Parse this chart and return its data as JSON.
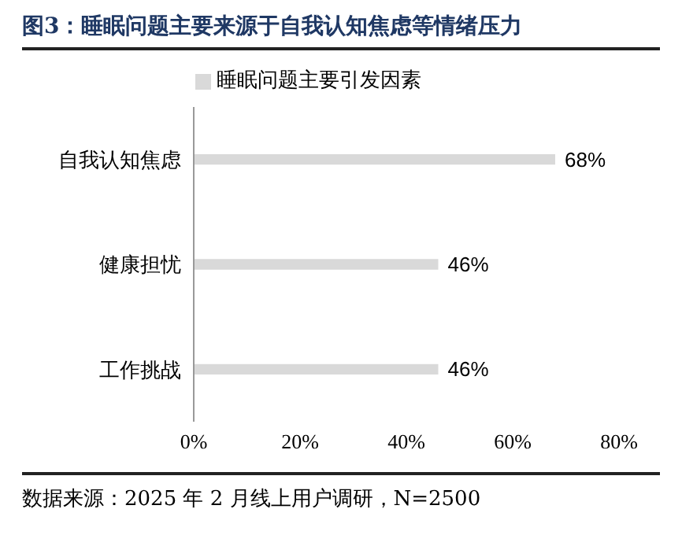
{
  "chart_data": {
    "type": "bar",
    "orientation": "horizontal",
    "title": "图3：睡眠问题主要来源于自我认知焦虑等情绪压力",
    "categories": [
      "自我认知焦虑",
      "健康担忧",
      "工作挑战"
    ],
    "series": [
      {
        "name": "睡眠问题主要引发因素",
        "color": "#d9d9d9",
        "values": [
          68,
          46,
          46
        ],
        "value_labels": [
          "68%",
          "46%",
          "46%"
        ]
      }
    ],
    "xlim": [
      0,
      80
    ],
    "xticks": [
      {
        "value": 0,
        "label": "0%"
      },
      {
        "value": 20,
        "label": "20%"
      },
      {
        "value": 40,
        "label": "40%"
      },
      {
        "value": 60,
        "label": "60%"
      },
      {
        "value": 80,
        "label": "80%"
      }
    ],
    "grid": false,
    "legend": "top",
    "annotations": [
      "数据来源：2025 年 2 月线上用户调研，N=2500"
    ]
  }
}
